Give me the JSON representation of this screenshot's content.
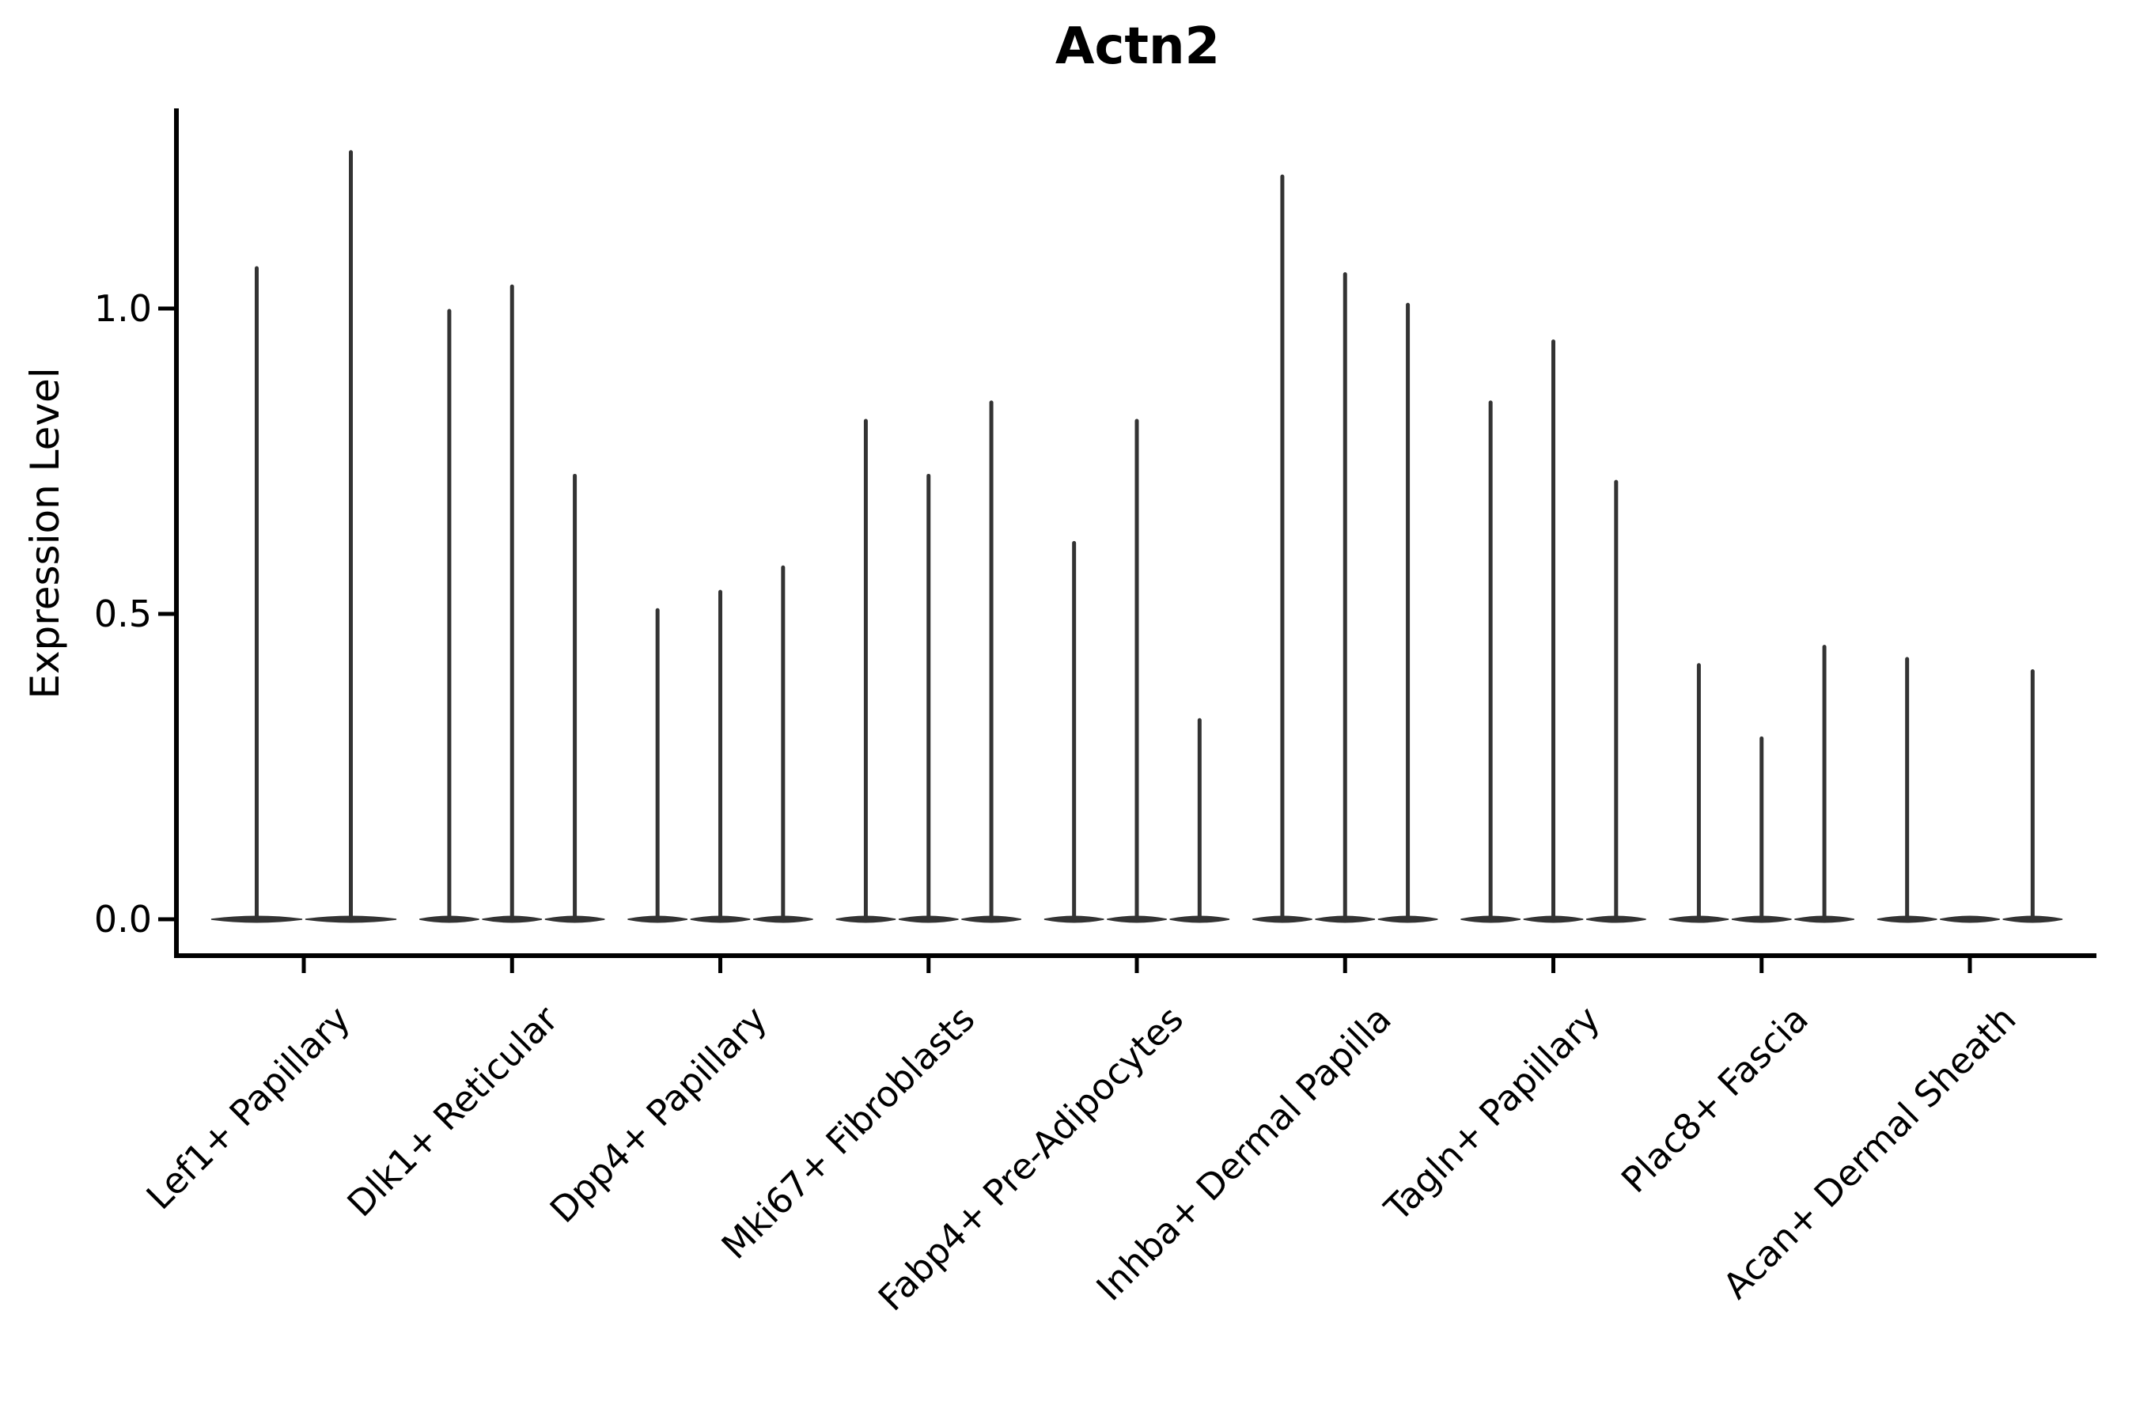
{
  "chart_data": {
    "type": "violin",
    "title": "Actn2",
    "ylabel": "Expression Level",
    "xlabel": "",
    "grid": false,
    "legend": null,
    "background_color": "#ffffff",
    "violin_color": "#333333",
    "axis_color": "#000000",
    "ylim": [
      -0.06,
      1.32
    ],
    "yticks": [
      {
        "value": 0.0,
        "label": "0.0"
      },
      {
        "value": 0.5,
        "label": "0.5"
      },
      {
        "value": 1.0,
        "label": "1.0"
      }
    ],
    "categories": [
      "Lef1+ Papillary",
      "Dlk1+ Reticular",
      "Dpp4+ Papillary",
      "Mki67+ Fibroblasts",
      "Fabp4+ Pre-Adipocytes",
      "Inhba+ Dermal Papilla",
      "Tagln+ Papillary",
      "Plac8+ Fascia",
      "Acan+ Dermal Sheath"
    ],
    "series": [
      {
        "category": "Lef1+ Papillary",
        "violin_max_values": [
          1.07,
          1.26
        ],
        "baseline_value": 0.0
      },
      {
        "category": "Dlk1+ Reticular",
        "violin_max_values": [
          1.0,
          1.04,
          0.73
        ],
        "baseline_value": 0.0
      },
      {
        "category": "Dpp4+ Papillary",
        "violin_max_values": [
          0.51,
          0.54,
          0.58
        ],
        "baseline_value": 0.0
      },
      {
        "category": "Mki67+ Fibroblasts",
        "violin_max_values": [
          0.82,
          0.73,
          0.85
        ],
        "baseline_value": 0.0
      },
      {
        "category": "Fabp4+ Pre-Adipocytes",
        "violin_max_values": [
          0.62,
          0.82,
          0.33
        ],
        "baseline_value": 0.0
      },
      {
        "category": "Inhba+ Dermal Papilla",
        "violin_max_values": [
          1.22,
          1.06,
          1.01
        ],
        "baseline_value": 0.0
      },
      {
        "category": "Tagln+ Papillary",
        "violin_max_values": [
          0.85,
          0.95,
          0.72
        ],
        "baseline_value": 0.0
      },
      {
        "category": "Plac8+ Fascia",
        "violin_max_values": [
          0.42,
          0.3,
          0.45
        ],
        "baseline_value": 0.0
      },
      {
        "category": "Acan+ Dermal Sheath",
        "violin_max_values": [
          0.43,
          0.0,
          0.41
        ],
        "baseline_value": 0.0
      }
    ]
  }
}
